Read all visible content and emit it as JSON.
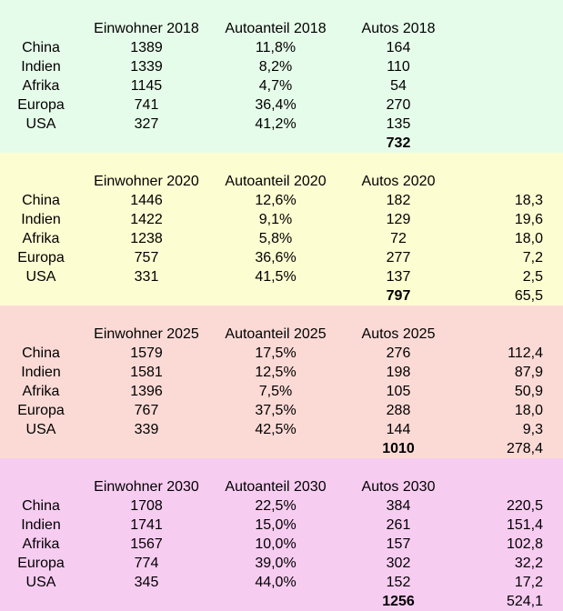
{
  "table": {
    "countries": [
      "China",
      "Indien",
      "Afrika",
      "Europa",
      "USA"
    ],
    "text_color": "#000000",
    "sections": [
      {
        "year": "2018",
        "bg": "#e6fcea",
        "headers": {
          "einwohner": "Einwohner 2018",
          "autoanteil": "Autoanteil 2018",
          "autos": "Autos 2018"
        },
        "rows": [
          {
            "label": "China",
            "einwohner": "1389",
            "autoanteil": "11,8%",
            "autos": "164",
            "zuwachs": ""
          },
          {
            "label": "Indien",
            "einwohner": "1339",
            "autoanteil": "8,2%",
            "autos": "110",
            "zuwachs": ""
          },
          {
            "label": "Afrika",
            "einwohner": "1145",
            "autoanteil": "4,7%",
            "autos": "54",
            "zuwachs": ""
          },
          {
            "label": "Europa",
            "einwohner": "741",
            "autoanteil": "36,4%",
            "autos": "270",
            "zuwachs": ""
          },
          {
            "label": "USA",
            "einwohner": "327",
            "autoanteil": "41,2%",
            "autos": "135",
            "zuwachs": ""
          }
        ],
        "total_autos": "732",
        "total_zuwachs": ""
      },
      {
        "year": "2020",
        "bg": "#fdfdd2",
        "headers": {
          "einwohner": "Einwohner 2020",
          "autoanteil": "Autoanteil 2020",
          "autos": "Autos 2020"
        },
        "rows": [
          {
            "label": "China",
            "einwohner": "1446",
            "autoanteil": "12,6%",
            "autos": "182",
            "zuwachs": "18,3"
          },
          {
            "label": "Indien",
            "einwohner": "1422",
            "autoanteil": "9,1%",
            "autos": "129",
            "zuwachs": "19,6"
          },
          {
            "label": "Afrika",
            "einwohner": "1238",
            "autoanteil": "5,8%",
            "autos": "72",
            "zuwachs": "18,0"
          },
          {
            "label": "Europa",
            "einwohner": "757",
            "autoanteil": "36,6%",
            "autos": "277",
            "zuwachs": "7,2"
          },
          {
            "label": "USA",
            "einwohner": "331",
            "autoanteil": "41,5%",
            "autos": "137",
            "zuwachs": "2,5"
          }
        ],
        "total_autos": "797",
        "total_zuwachs": "65,5"
      },
      {
        "year": "2025",
        "bg": "#fbdad6",
        "headers": {
          "einwohner": "Einwohner 2025",
          "autoanteil": "Autoanteil 2025",
          "autos": "Autos 2025"
        },
        "rows": [
          {
            "label": "China",
            "einwohner": "1579",
            "autoanteil": "17,5%",
            "autos": "276",
            "zuwachs": "112,4"
          },
          {
            "label": "Indien",
            "einwohner": "1581",
            "autoanteil": "12,5%",
            "autos": "198",
            "zuwachs": "87,9"
          },
          {
            "label": "Afrika",
            "einwohner": "1396",
            "autoanteil": "7,5%",
            "autos": "105",
            "zuwachs": "50,9"
          },
          {
            "label": "Europa",
            "einwohner": "767",
            "autoanteil": "37,5%",
            "autos": "288",
            "zuwachs": "18,0"
          },
          {
            "label": "USA",
            "einwohner": "339",
            "autoanteil": "42,5%",
            "autos": "144",
            "zuwachs": "9,3"
          }
        ],
        "total_autos": "1010",
        "total_zuwachs": "278,4"
      },
      {
        "year": "2030",
        "bg": "#f7ccf1",
        "headers": {
          "einwohner": "Einwohner 2030",
          "autoanteil": "Autoanteil 2030",
          "autos": "Autos 2030"
        },
        "rows": [
          {
            "label": "China",
            "einwohner": "1708",
            "autoanteil": "22,5%",
            "autos": "384",
            "zuwachs": "220,5"
          },
          {
            "label": "Indien",
            "einwohner": "1741",
            "autoanteil": "15,0%",
            "autos": "261",
            "zuwachs": "151,4"
          },
          {
            "label": "Afrika",
            "einwohner": "1567",
            "autoanteil": "10,0%",
            "autos": "157",
            "zuwachs": "102,8"
          },
          {
            "label": "Europa",
            "einwohner": "774",
            "autoanteil": "39,0%",
            "autos": "302",
            "zuwachs": "32,2"
          },
          {
            "label": "USA",
            "einwohner": "345",
            "autoanteil": "44,0%",
            "autos": "152",
            "zuwachs": "17,2"
          }
        ],
        "total_autos": "1256",
        "total_zuwachs": "524,1"
      }
    ]
  }
}
